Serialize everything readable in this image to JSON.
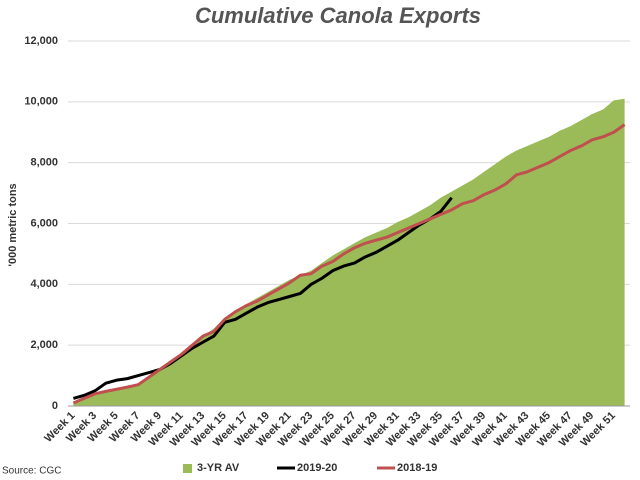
{
  "chart_data": {
    "type": "area-line",
    "title": "Cumulative Canola  Exports",
    "y_label": "'000 metric tons",
    "source": "Source: CGC",
    "categories": [
      "Week 1",
      null,
      "Week 3",
      null,
      "Week 5",
      null,
      "Week 7",
      null,
      "Week 9",
      null,
      "Week 11",
      null,
      "Week 13",
      null,
      "Week 15",
      null,
      "Week 17",
      null,
      "Week 19",
      null,
      "Week 21",
      null,
      "Week 23",
      null,
      "Week 25",
      null,
      "Week 27",
      null,
      "Week 29",
      null,
      "Week 31",
      null,
      "Week 33",
      null,
      "Week 35",
      null,
      "Week 37",
      null,
      "Week 39",
      null,
      "Week 41",
      null,
      "Week 43",
      null,
      "Week 45",
      null,
      "Week 47",
      null,
      "Week 49",
      null,
      "Week 51",
      null
    ],
    "series": [
      {
        "name": "3-YR AV",
        "kind": "area",
        "color": "#9bbb59",
        "values": [
          100,
          200,
          350,
          450,
          550,
          650,
          750,
          1000,
          1250,
          1500,
          1700,
          2000,
          2300,
          2550,
          2900,
          3150,
          3350,
          3550,
          3750,
          3950,
          4150,
          4300,
          4450,
          4700,
          4950,
          5150,
          5350,
          5550,
          5700,
          5850,
          6050,
          6200,
          6400,
          6600,
          6850,
          7050,
          7250,
          7450,
          7700,
          7950,
          8200,
          8400,
          8550,
          8700,
          8850,
          9050,
          9200,
          9400,
          9600,
          9750,
          10050,
          10100
        ]
      },
      {
        "name": "2019-20",
        "kind": "line",
        "color": "#000000",
        "values": [
          250,
          350,
          500,
          750,
          850,
          900,
          1000,
          1100,
          1200,
          1400,
          1650,
          1900,
          2100,
          2300,
          2750,
          2850,
          3050,
          3250,
          3400,
          3500,
          3600,
          3700,
          4000,
          4200,
          4450,
          4600,
          4700,
          4900,
          5050,
          5250,
          5450,
          5700,
          5950,
          6150,
          6400,
          6850,
          null,
          null,
          null,
          null,
          null,
          null,
          null,
          null,
          null,
          null,
          null,
          null,
          null,
          null,
          null,
          null
        ]
      },
      {
        "name": "2018-19",
        "kind": "line",
        "color": "#c0504d",
        "values": [
          100,
          250,
          400,
          480,
          550,
          620,
          700,
          950,
          1200,
          1450,
          1700,
          2000,
          2300,
          2450,
          2850,
          3100,
          3300,
          3450,
          3650,
          3850,
          4050,
          4300,
          4350,
          4600,
          4750,
          5000,
          5200,
          5350,
          5450,
          5550,
          5700,
          5850,
          6000,
          6150,
          6300,
          6450,
          6650,
          6750,
          6950,
          7100,
          7300,
          7600,
          7700,
          7850,
          8000,
          8200,
          8400,
          8550,
          8750,
          8850,
          9000,
          9250
        ]
      }
    ],
    "ylim": [
      0,
      12000
    ],
    "yticks": [
      0,
      {
        "value": 2000,
        "label": "2,000"
      },
      {
        "value": 4000,
        "label": "4,000"
      },
      {
        "value": 6000,
        "label": "6,000"
      },
      {
        "value": 8000,
        "label": "8,000"
      },
      {
        "value": 10000,
        "label": "10,000"
      },
      {
        "value": 12000,
        "label": "12,000"
      }
    ],
    "grid": true,
    "legend": "bottom"
  }
}
